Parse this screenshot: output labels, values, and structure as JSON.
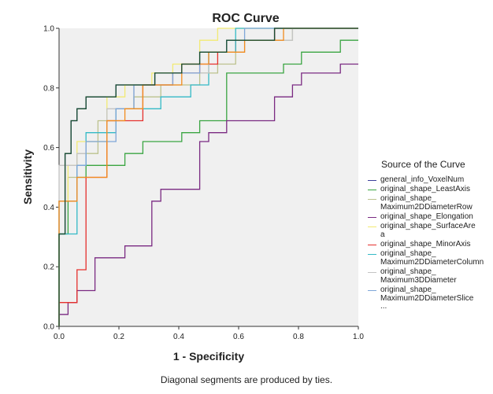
{
  "chart_data": {
    "type": "line",
    "title": "ROC Curve",
    "xlabel": "1 - Specificity",
    "ylabel": "Sensitivity",
    "xlim": [
      0,
      1
    ],
    "ylim": [
      0,
      1
    ],
    "xticks": [
      "0.0",
      "0.2",
      "0.4",
      "0.6",
      "0.8",
      "1.0"
    ],
    "yticks": [
      "0.0",
      "0.2",
      "0.4",
      "0.6",
      "0.8",
      "1.0"
    ],
    "legend_title": "Source of the Curve",
    "legend_more": "...",
    "footnote": "Diagonal segments are produced by ties.",
    "series": [
      {
        "name": "general_info_VoxelNum",
        "legend_label": "general_info_VoxelNum",
        "color": "#3b3f9b",
        "x": [
          0,
          0,
          0.02,
          0.02,
          0.04,
          0.04,
          0.06,
          0.06,
          0.09,
          0.09,
          0.19,
          0.19,
          0.32,
          0.32,
          0.41,
          0.41,
          0.47,
          0.47,
          0.56,
          0.56,
          0.72,
          0.72,
          0.87,
          0.87,
          1.0
        ],
        "y": [
          0,
          0.31,
          0.31,
          0.58,
          0.58,
          0.69,
          0.69,
          0.73,
          0.73,
          0.77,
          0.77,
          0.81,
          0.81,
          0.85,
          0.85,
          0.88,
          0.88,
          0.92,
          0.92,
          0.96,
          0.96,
          1.0,
          1.0,
          1.0,
          1.0
        ]
      },
      {
        "name": "original_shape_LeastAxis",
        "legend_label": "original_shape_LeastAxis",
        "color": "#3aa542",
        "x": [
          0,
          0,
          0.03,
          0.03,
          0.06,
          0.06,
          0.09,
          0.09,
          0.22,
          0.22,
          0.28,
          0.28,
          0.41,
          0.41,
          0.47,
          0.47,
          0.56,
          0.56,
          0.75,
          0.75,
          0.81,
          0.81,
          0.94,
          0.94,
          1.0
        ],
        "y": [
          0,
          0.31,
          0.31,
          0.42,
          0.42,
          0.5,
          0.5,
          0.54,
          0.54,
          0.58,
          0.58,
          0.62,
          0.62,
          0.65,
          0.65,
          0.69,
          0.69,
          0.85,
          0.85,
          0.88,
          0.88,
          0.92,
          0.92,
          0.96,
          0.96
        ]
      },
      {
        "name": "original_shape_Maximum2DDiameterRow",
        "legend_label": "original_shape_\nMaximum2DDiameterRow",
        "color": "#bcc28e",
        "x": [
          0,
          0,
          0.03,
          0.03,
          0.06,
          0.06,
          0.13,
          0.13,
          0.19,
          0.19,
          0.25,
          0.25,
          0.34,
          0.34,
          0.47,
          0.47,
          0.53,
          0.53,
          0.59,
          0.59,
          0.78,
          0.78,
          0.91,
          0.91,
          1.0
        ],
        "y": [
          0,
          0.42,
          0.42,
          0.5,
          0.5,
          0.58,
          0.58,
          0.69,
          0.69,
          0.73,
          0.73,
          0.77,
          0.77,
          0.81,
          0.81,
          0.85,
          0.85,
          0.88,
          0.88,
          0.96,
          0.96,
          1.0,
          1.0,
          1.0,
          1.0
        ]
      },
      {
        "name": "original_shape_Elongation",
        "legend_label": "original_shape_Elongation",
        "color": "#7a2a82",
        "x": [
          0,
          0,
          0.03,
          0.03,
          0.06,
          0.06,
          0.12,
          0.12,
          0.22,
          0.22,
          0.31,
          0.31,
          0.34,
          0.34,
          0.47,
          0.47,
          0.5,
          0.5,
          0.56,
          0.56,
          0.62,
          0.62,
          0.72,
          0.72,
          0.78,
          0.78,
          0.81,
          0.81,
          0.87,
          0.87,
          0.94,
          0.94,
          1.0
        ],
        "y": [
          0,
          0.04,
          0.04,
          0.08,
          0.08,
          0.12,
          0.12,
          0.23,
          0.23,
          0.27,
          0.27,
          0.42,
          0.42,
          0.46,
          0.46,
          0.62,
          0.62,
          0.65,
          0.65,
          0.69,
          0.69,
          0.69,
          0.69,
          0.77,
          0.77,
          0.81,
          0.81,
          0.85,
          0.85,
          0.85,
          0.85,
          0.88,
          0.88
        ]
      },
      {
        "name": "original_shape_SurfaceArea",
        "legend_label": "original_shape_SurfaceAre\na",
        "color": "#f2ea73",
        "x": [
          0,
          0,
          0.03,
          0.03,
          0.06,
          0.06,
          0.16,
          0.16,
          0.22,
          0.22,
          0.31,
          0.31,
          0.38,
          0.38,
          0.47,
          0.47,
          0.53,
          0.53,
          0.59,
          0.59,
          1.0
        ],
        "y": [
          0,
          0.42,
          0.42,
          0.54,
          0.54,
          0.62,
          0.62,
          0.77,
          0.77,
          0.81,
          0.81,
          0.85,
          0.85,
          0.88,
          0.88,
          0.96,
          0.96,
          1.0,
          1.0,
          1.0,
          1.0
        ]
      },
      {
        "name": "original_shape_MinorAxis",
        "legend_label": "original_shape_MinorAxis",
        "color": "#e5302d",
        "x": [
          0,
          0,
          0.06,
          0.06,
          0.09,
          0.09,
          0.16,
          0.16,
          0.28,
          0.28,
          0.38,
          0.38,
          0.47,
          0.47,
          0.53,
          0.53,
          0.59,
          0.59,
          0.72,
          0.72,
          1.0
        ],
        "y": [
          0,
          0.08,
          0.08,
          0.19,
          0.19,
          0.5,
          0.5,
          0.69,
          0.69,
          0.81,
          0.81,
          0.85,
          0.85,
          0.88,
          0.88,
          0.92,
          0.92,
          0.96,
          0.96,
          1.0,
          1.0
        ]
      },
      {
        "name": "original_shape_Maximum2DDiameterColumn",
        "legend_label": "original_shape_\nMaximum2DDiameterColumn",
        "color": "#33b9c6",
        "x": [
          0,
          0,
          0.06,
          0.06,
          0.09,
          0.09,
          0.19,
          0.19,
          0.34,
          0.34,
          0.44,
          0.44,
          0.5,
          0.5,
          0.59,
          0.59,
          0.69,
          0.69,
          1.0
        ],
        "y": [
          0,
          0.31,
          0.31,
          0.54,
          0.54,
          0.65,
          0.65,
          0.73,
          0.73,
          0.77,
          0.77,
          0.81,
          0.81,
          0.92,
          0.92,
          1.0,
          1.0,
          1.0,
          1.0
        ]
      },
      {
        "name": "original_shape_Maximum3DDiameter",
        "legend_label": "original_shape_\nMaximum3DDiameter",
        "color": "#c4c4c4",
        "x": [
          0,
          0,
          0.06,
          0.06,
          0.09,
          0.09,
          0.16,
          0.16,
          0.25,
          0.25,
          0.38,
          0.38,
          0.5,
          0.5,
          0.62,
          0.62,
          0.78,
          0.78,
          1.0
        ],
        "y": [
          0,
          0.54,
          0.54,
          0.58,
          0.58,
          0.62,
          0.62,
          0.73,
          0.73,
          0.81,
          0.81,
          0.85,
          0.85,
          0.92,
          0.92,
          0.96,
          0.96,
          1.0,
          1.0
        ]
      },
      {
        "name": "original_shape_Maximum2DDiameterSlice",
        "legend_label": "original_shape_\nMaximum2DDiameterSlice",
        "color": "#7fa6d8",
        "x": [
          0,
          0,
          0.06,
          0.06,
          0.09,
          0.09,
          0.19,
          0.19,
          0.25,
          0.25,
          0.38,
          0.38,
          0.47,
          0.47,
          0.56,
          0.56,
          0.62,
          0.62,
          1.0
        ],
        "y": [
          0,
          0.42,
          0.42,
          0.54,
          0.54,
          0.62,
          0.62,
          0.73,
          0.73,
          0.81,
          0.81,
          0.85,
          0.85,
          0.92,
          0.92,
          0.96,
          0.96,
          1.0,
          1.0
        ]
      },
      {
        "name": "overlay_orange",
        "legend_label": "",
        "color": "#f28c1e",
        "x": [
          0,
          0,
          0.06,
          0.06,
          0.16,
          0.16,
          0.22,
          0.22,
          0.28,
          0.28,
          0.41,
          0.41,
          0.5,
          0.5,
          0.62,
          0.62,
          0.75,
          0.75,
          0.87,
          0.87,
          1.0
        ],
        "y": [
          0,
          0.42,
          0.42,
          0.5,
          0.5,
          0.69,
          0.69,
          0.73,
          0.73,
          0.81,
          0.81,
          0.88,
          0.88,
          0.92,
          0.92,
          0.96,
          0.96,
          1.0,
          1.0,
          1.0,
          1.0
        ]
      },
      {
        "name": "overlay_darkgreen",
        "legend_label": "",
        "color": "#184d2e",
        "x": [
          0,
          0,
          0.02,
          0.02,
          0.04,
          0.04,
          0.06,
          0.06,
          0.09,
          0.09,
          0.19,
          0.19,
          0.32,
          0.32,
          0.41,
          0.41,
          0.47,
          0.47,
          0.56,
          0.56,
          0.72,
          0.72,
          0.87,
          0.87,
          1.0
        ],
        "y": [
          0,
          0.31,
          0.31,
          0.58,
          0.58,
          0.69,
          0.69,
          0.73,
          0.73,
          0.77,
          0.77,
          0.81,
          0.81,
          0.85,
          0.85,
          0.88,
          0.88,
          0.92,
          0.92,
          0.96,
          0.96,
          1.0,
          1.0,
          1.0,
          1.0
        ]
      }
    ]
  }
}
